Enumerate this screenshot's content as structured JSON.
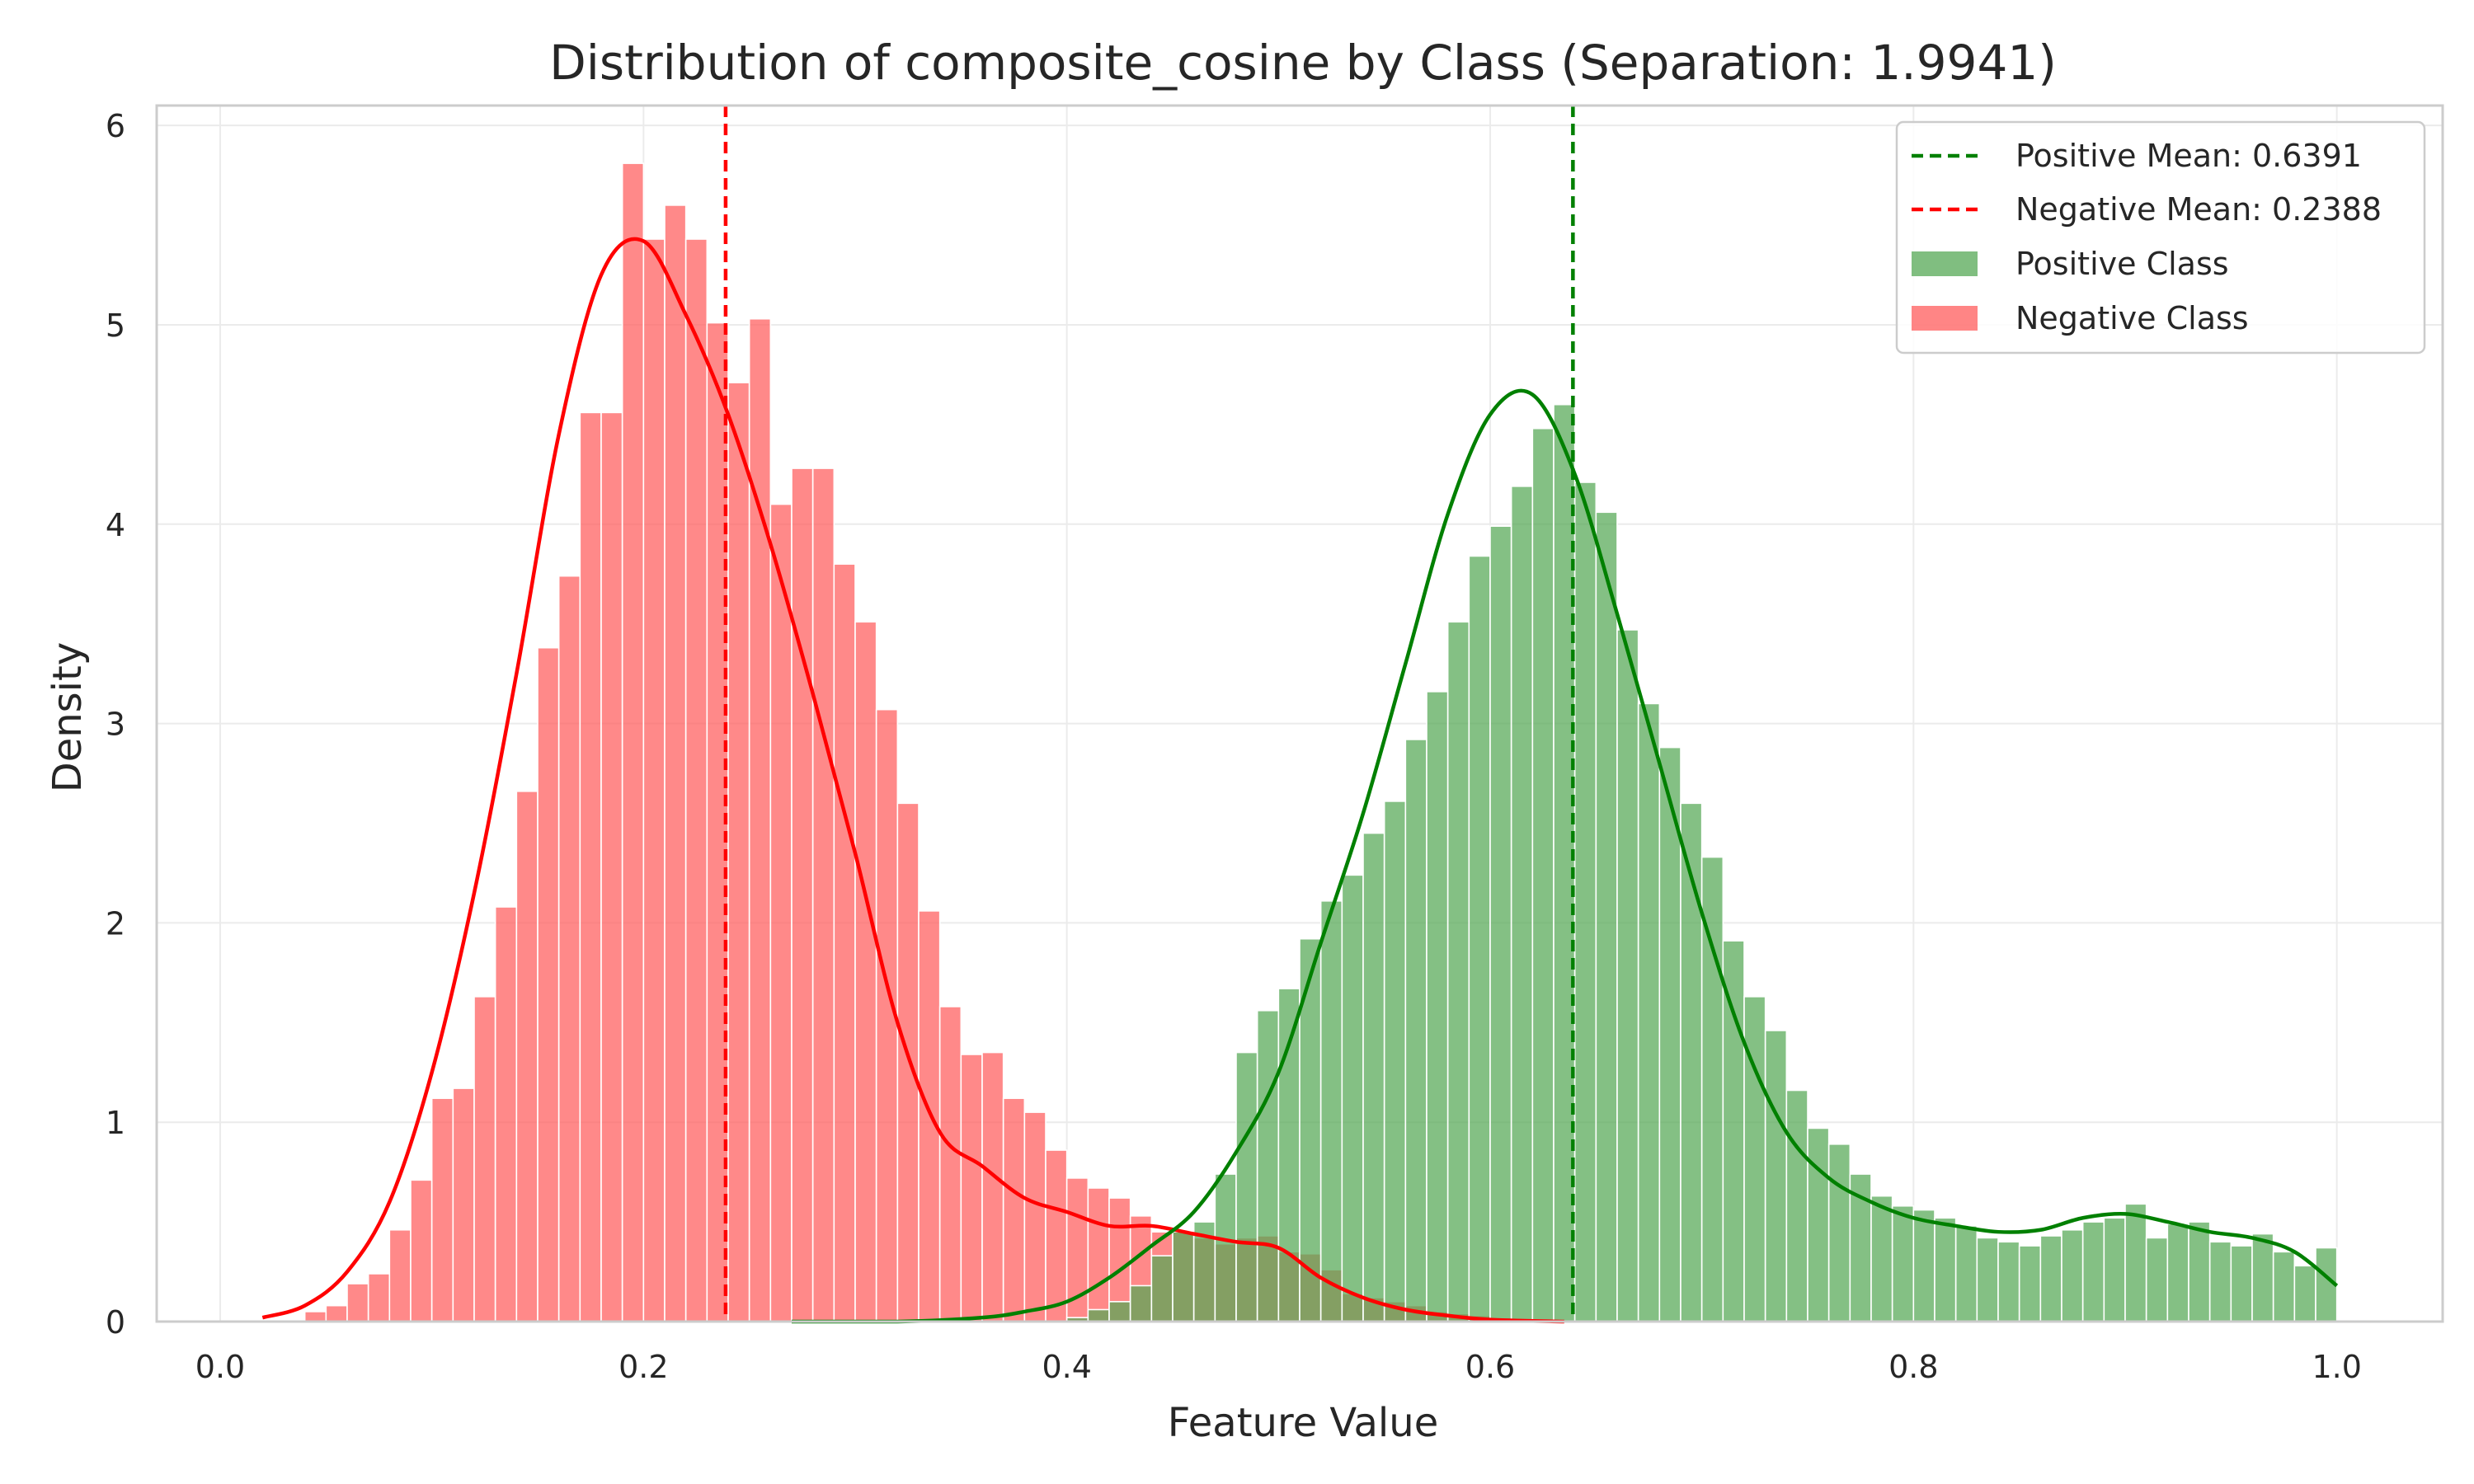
{
  "chart_data": {
    "type": "histogram",
    "title": "Distribution of composite_cosine by Class (Separation: 1.9941)",
    "xlabel": "Feature Value",
    "ylabel": "Density",
    "xlim": [
      -0.03,
      1.05
    ],
    "ylim": [
      0,
      6.1
    ],
    "x_ticks": [
      0.0,
      0.2,
      0.4,
      0.6,
      0.8,
      1.0
    ],
    "x_tick_labels": [
      "0.0",
      "0.2",
      "0.4",
      "0.6",
      "0.8",
      "1.0"
    ],
    "y_ticks": [
      0,
      1,
      2,
      3,
      4,
      5,
      6
    ],
    "y_tick_labels": [
      "0",
      "1",
      "2",
      "3",
      "4",
      "5",
      "6"
    ],
    "grid": true,
    "legend_position": "top-right",
    "colors": {
      "positive": "#008000",
      "negative": "#ff0000",
      "positive_fill": "#55a855",
      "negative_fill": "#ff5c5c"
    },
    "series": [
      {
        "name": "Negative Class",
        "kind": "histogram",
        "bin_width": 0.01,
        "bins": [
          [
            0.04,
            0.05,
            0.05
          ],
          [
            0.05,
            0.06,
            0.08
          ],
          [
            0.06,
            0.07,
            0.19
          ],
          [
            0.07,
            0.08,
            0.24
          ],
          [
            0.08,
            0.09,
            0.46
          ],
          [
            0.09,
            0.1,
            0.71
          ],
          [
            0.1,
            0.11,
            1.12
          ],
          [
            0.11,
            0.12,
            1.17
          ],
          [
            0.12,
            0.13,
            1.63
          ],
          [
            0.13,
            0.14,
            2.08
          ],
          [
            0.14,
            0.15,
            2.66
          ],
          [
            0.15,
            0.16,
            3.38
          ],
          [
            0.16,
            0.17,
            3.74
          ],
          [
            0.17,
            0.18,
            4.56
          ],
          [
            0.18,
            0.19,
            4.56
          ],
          [
            0.19,
            0.2,
            5.81
          ],
          [
            0.2,
            0.21,
            5.43
          ],
          [
            0.21,
            0.22,
            5.6
          ],
          [
            0.22,
            0.23,
            5.43
          ],
          [
            0.23,
            0.24,
            5.01
          ],
          [
            0.24,
            0.25,
            4.71
          ],
          [
            0.25,
            0.26,
            5.03
          ],
          [
            0.26,
            0.27,
            4.1
          ],
          [
            0.27,
            0.28,
            4.28
          ],
          [
            0.28,
            0.29,
            4.28
          ],
          [
            0.29,
            0.3,
            3.8
          ],
          [
            0.3,
            0.31,
            3.51
          ],
          [
            0.31,
            0.32,
            3.07
          ],
          [
            0.32,
            0.33,
            2.6
          ],
          [
            0.33,
            0.34,
            2.06
          ],
          [
            0.34,
            0.35,
            1.58
          ],
          [
            0.35,
            0.36,
            1.34
          ],
          [
            0.36,
            0.37,
            1.35
          ],
          [
            0.37,
            0.38,
            1.12
          ],
          [
            0.38,
            0.39,
            1.05
          ],
          [
            0.39,
            0.4,
            0.86
          ],
          [
            0.4,
            0.41,
            0.72
          ],
          [
            0.41,
            0.42,
            0.67
          ],
          [
            0.42,
            0.43,
            0.62
          ],
          [
            0.43,
            0.44,
            0.53
          ],
          [
            0.44,
            0.45,
            0.45
          ],
          [
            0.45,
            0.46,
            0.45
          ],
          [
            0.46,
            0.47,
            0.42
          ],
          [
            0.47,
            0.48,
            0.39
          ],
          [
            0.48,
            0.49,
            0.42
          ],
          [
            0.49,
            0.5,
            0.43
          ],
          [
            0.5,
            0.51,
            0.35
          ],
          [
            0.51,
            0.52,
            0.34
          ],
          [
            0.52,
            0.53,
            0.26
          ],
          [
            0.53,
            0.54,
            0.14
          ],
          [
            0.54,
            0.55,
            0.12
          ],
          [
            0.55,
            0.56,
            0.1
          ],
          [
            0.56,
            0.57,
            0.08
          ],
          [
            0.57,
            0.58,
            0.05
          ],
          [
            0.58,
            0.59,
            0.04
          ],
          [
            0.59,
            0.6,
            0.03
          ],
          [
            0.6,
            0.61,
            0.02
          ]
        ]
      },
      {
        "name": "Positive Class",
        "kind": "histogram",
        "bin_width": 0.01,
        "bins": [
          [
            0.4,
            0.41,
            0.02
          ],
          [
            0.41,
            0.42,
            0.06
          ],
          [
            0.42,
            0.43,
            0.1
          ],
          [
            0.43,
            0.44,
            0.18
          ],
          [
            0.44,
            0.45,
            0.33
          ],
          [
            0.45,
            0.46,
            0.45
          ],
          [
            0.46,
            0.47,
            0.5
          ],
          [
            0.47,
            0.48,
            0.74
          ],
          [
            0.48,
            0.49,
            1.35
          ],
          [
            0.49,
            0.5,
            1.56
          ],
          [
            0.5,
            0.51,
            1.67
          ],
          [
            0.51,
            0.52,
            1.92
          ],
          [
            0.52,
            0.53,
            2.11
          ],
          [
            0.53,
            0.54,
            2.24
          ],
          [
            0.54,
            0.55,
            2.45
          ],
          [
            0.55,
            0.56,
            2.61
          ],
          [
            0.56,
            0.57,
            2.92
          ],
          [
            0.57,
            0.58,
            3.16
          ],
          [
            0.58,
            0.59,
            3.51
          ],
          [
            0.59,
            0.6,
            3.84
          ],
          [
            0.6,
            0.61,
            3.99
          ],
          [
            0.61,
            0.62,
            4.19
          ],
          [
            0.62,
            0.63,
            4.48
          ],
          [
            0.63,
            0.64,
            4.6
          ],
          [
            0.64,
            0.65,
            4.21
          ],
          [
            0.65,
            0.66,
            4.06
          ],
          [
            0.66,
            0.67,
            3.47
          ],
          [
            0.67,
            0.68,
            3.1
          ],
          [
            0.68,
            0.69,
            2.88
          ],
          [
            0.69,
            0.7,
            2.6
          ],
          [
            0.7,
            0.71,
            2.33
          ],
          [
            0.71,
            0.72,
            1.91
          ],
          [
            0.72,
            0.73,
            1.63
          ],
          [
            0.73,
            0.74,
            1.46
          ],
          [
            0.74,
            0.75,
            1.16
          ],
          [
            0.75,
            0.76,
            0.97
          ],
          [
            0.76,
            0.77,
            0.89
          ],
          [
            0.77,
            0.78,
            0.74
          ],
          [
            0.78,
            0.79,
            0.63
          ],
          [
            0.79,
            0.8,
            0.58
          ],
          [
            0.8,
            0.81,
            0.56
          ],
          [
            0.81,
            0.82,
            0.52
          ],
          [
            0.82,
            0.83,
            0.48
          ],
          [
            0.83,
            0.84,
            0.42
          ],
          [
            0.84,
            0.85,
            0.4
          ],
          [
            0.85,
            0.86,
            0.38
          ],
          [
            0.86,
            0.87,
            0.43
          ],
          [
            0.87,
            0.88,
            0.46
          ],
          [
            0.88,
            0.89,
            0.5
          ],
          [
            0.89,
            0.9,
            0.52
          ],
          [
            0.9,
            0.91,
            0.59
          ],
          [
            0.91,
            0.92,
            0.42
          ],
          [
            0.92,
            0.93,
            0.49
          ],
          [
            0.93,
            0.94,
            0.5
          ],
          [
            0.94,
            0.95,
            0.4
          ],
          [
            0.95,
            0.96,
            0.38
          ],
          [
            0.96,
            0.97,
            0.44
          ],
          [
            0.97,
            0.98,
            0.35
          ],
          [
            0.98,
            0.99,
            0.28
          ],
          [
            0.99,
            1.0,
            0.37
          ]
        ]
      },
      {
        "name": "Negative KDE",
        "kind": "line",
        "x": [
          0.02,
          0.04,
          0.06,
          0.08,
          0.1,
          0.12,
          0.14,
          0.16,
          0.18,
          0.2,
          0.22,
          0.24,
          0.26,
          0.28,
          0.3,
          0.32,
          0.34,
          0.36,
          0.38,
          0.4,
          0.42,
          0.44,
          0.46,
          0.48,
          0.5,
          0.52,
          0.54,
          0.56,
          0.58,
          0.6,
          0.635
        ],
        "y": [
          0.02,
          0.08,
          0.25,
          0.6,
          1.25,
          2.15,
          3.25,
          4.45,
          5.25,
          5.42,
          5.05,
          4.55,
          3.9,
          3.15,
          2.35,
          1.5,
          0.95,
          0.78,
          0.62,
          0.55,
          0.48,
          0.48,
          0.44,
          0.4,
          0.37,
          0.22,
          0.12,
          0.06,
          0.03,
          0.01,
          0.0
        ]
      },
      {
        "name": "Positive KDE",
        "kind": "line",
        "x": [
          0.27,
          0.32,
          0.36,
          0.38,
          0.4,
          0.42,
          0.44,
          0.46,
          0.48,
          0.5,
          0.52,
          0.54,
          0.56,
          0.58,
          0.6,
          0.62,
          0.64,
          0.66,
          0.68,
          0.7,
          0.72,
          0.74,
          0.76,
          0.78,
          0.8,
          0.82,
          0.84,
          0.86,
          0.88,
          0.9,
          0.92,
          0.94,
          0.96,
          0.98,
          1.0
        ],
        "y": [
          0.0,
          0.0,
          0.02,
          0.05,
          0.1,
          0.22,
          0.38,
          0.55,
          0.85,
          1.25,
          1.9,
          2.55,
          3.3,
          4.05,
          4.55,
          4.65,
          4.25,
          3.55,
          2.8,
          2.05,
          1.4,
          0.95,
          0.72,
          0.6,
          0.52,
          0.48,
          0.45,
          0.46,
          0.52,
          0.54,
          0.5,
          0.45,
          0.42,
          0.35,
          0.18
        ]
      }
    ],
    "reference_lines": [
      {
        "name": "Positive Mean: 0.6391",
        "x": 0.6391,
        "style": "dashed",
        "color": "#008000"
      },
      {
        "name": "Negative Mean: 0.2388",
        "x": 0.2388,
        "style": "dashed",
        "color": "#ff0000"
      }
    ],
    "legend": [
      {
        "label": "Positive Mean: 0.6391",
        "kind": "dashed-line",
        "color": "#008000"
      },
      {
        "label": "Negative Mean: 0.2388",
        "kind": "dashed-line",
        "color": "#ff0000"
      },
      {
        "label": "Positive Class",
        "kind": "patch",
        "color": "#55a855"
      },
      {
        "label": "Negative Class",
        "kind": "patch",
        "color": "#ff5c5c"
      }
    ]
  }
}
